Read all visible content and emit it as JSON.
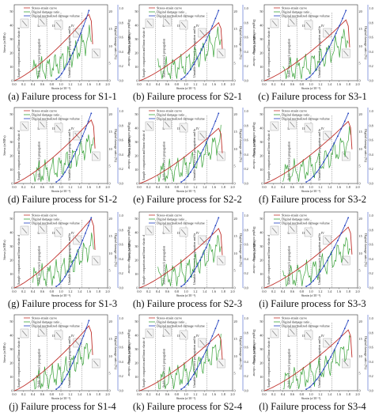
{
  "figure": {
    "colors": {
      "stress": "#c0312c",
      "damage_ratio": "#3aa33a",
      "damage_volume": "#1f3fbf",
      "stage_line": "#555555",
      "specimen": "#8a8a8a"
    },
    "legend_labels": [
      "Stress-strain curve",
      "Digital damage ratio",
      "Digital normalized damage volume"
    ],
    "x_axis_label": "Strain (ε/10⁻²)",
    "y_left_label": "Stress (σ/MPa)",
    "y_right_inner_label": "Digital damage ratio (%)",
    "y_right_outer_label": "Digital normalized damage volume",
    "stage_labels": [
      "Sample compaction and linear elastic deformation",
      "Stable microcrack propagation",
      "Unstable macrocrack propagation and failure"
    ],
    "stage_numerals": [
      "I",
      "II",
      "III",
      "IV"
    ],
    "x_ticks": [
      "0.0",
      "0.2",
      "0.4",
      "0.6",
      "0.8",
      "1.0",
      "1.2",
      "1.4",
      "1.6",
      "1.8",
      "2.0"
    ],
    "y_left_ticks": [
      "0",
      "10",
      "20",
      "30",
      "40",
      "50"
    ],
    "y_mid_ticks": [
      "0",
      "5",
      "10",
      "15",
      "20"
    ],
    "y_right_ticks": [
      "0.0",
      "0.2",
      "0.4",
      "0.6",
      "0.8",
      "1.0"
    ]
  },
  "chart_data": [
    {
      "type": "line",
      "caption": "(a) Failure process for S1-1",
      "peak_strain": 1.6,
      "peak_stress": 48
    },
    {
      "type": "line",
      "caption": "(b) Failure process for S2-1",
      "peak_strain": 1.7,
      "peak_stress": 42
    },
    {
      "type": "line",
      "caption": "(c) Failure process for S3-1",
      "peak_strain": 1.75,
      "peak_stress": 44
    },
    {
      "type": "line",
      "caption": "(d) Failure process for S1-2",
      "peak_strain": 1.65,
      "peak_stress": 46
    },
    {
      "type": "line",
      "caption": "(e) Failure process for S2-2",
      "peak_strain": 1.7,
      "peak_stress": 40
    },
    {
      "type": "line",
      "caption": "(f) Failure process for S3-2",
      "peak_strain": 1.8,
      "peak_stress": 45
    },
    {
      "type": "line",
      "caption": "(g) Failure process for S1-3",
      "peak_strain": 1.65,
      "peak_stress": 50
    },
    {
      "type": "line",
      "caption": "(h) Failure process for S2-3",
      "peak_strain": 1.7,
      "peak_stress": 43
    },
    {
      "type": "line",
      "caption": "(i) Failure process for S3-3",
      "peak_strain": 1.8,
      "peak_stress": 44
    },
    {
      "type": "line",
      "caption": "(j) Failure process for S1-4",
      "peak_strain": 1.6,
      "peak_stress": 47
    },
    {
      "type": "line",
      "caption": "(k) Failure process for S2-4",
      "peak_strain": 1.7,
      "peak_stress": 41
    },
    {
      "type": "line",
      "caption": "(l) Failure process for S3-4",
      "peak_strain": 1.8,
      "peak_stress": 44
    }
  ]
}
